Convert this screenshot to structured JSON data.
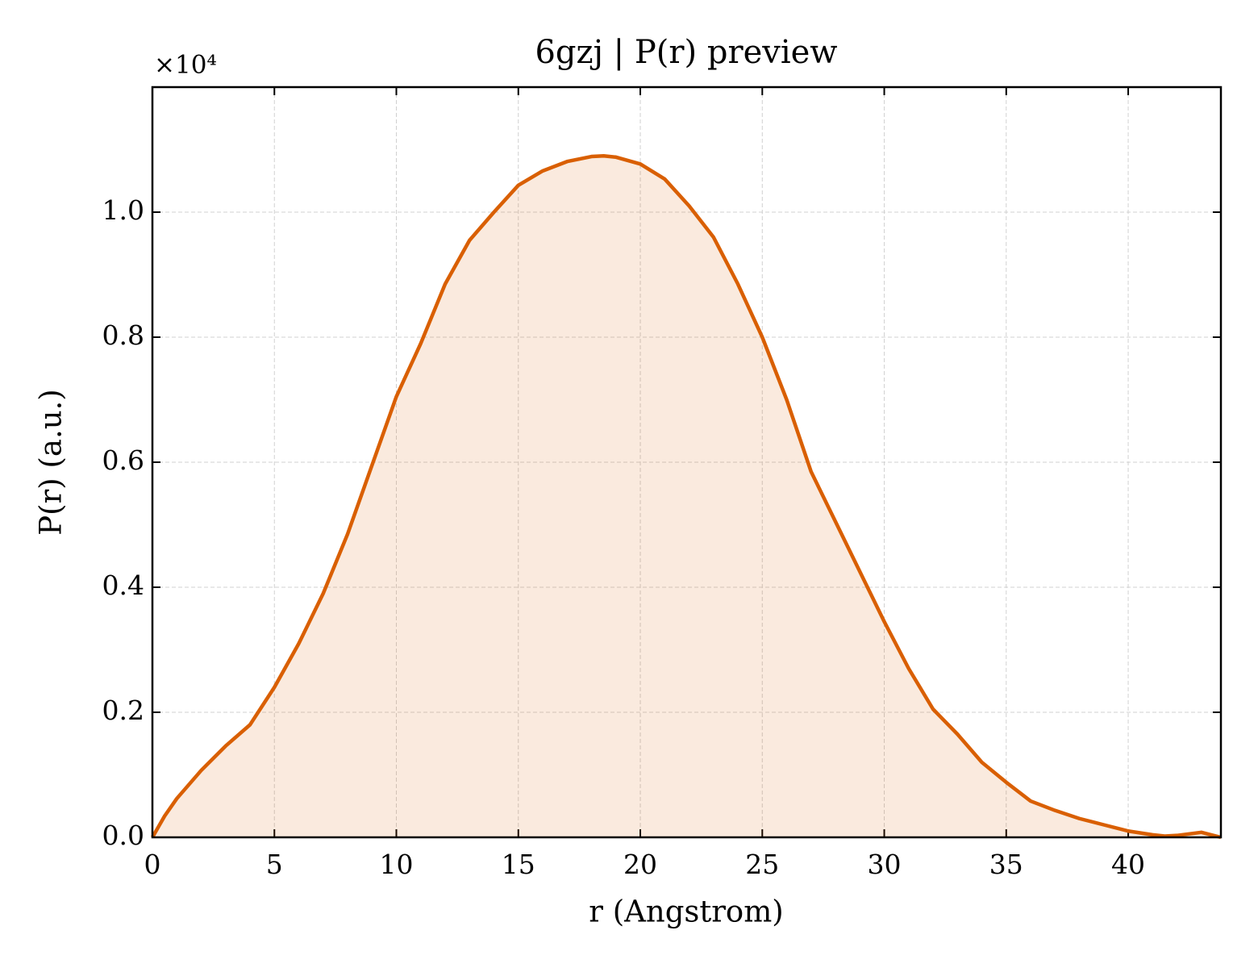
{
  "chart_data": {
    "type": "area_line",
    "title": "6gzj | P(r) preview",
    "xlabel": "r (Angstrom)",
    "ylabel": "P(r) (a.u.)",
    "y_offset_label": "×10⁴",
    "color": "#d95f02",
    "grid": true,
    "xlim": [
      0,
      43.8
    ],
    "xticks": [
      0,
      5,
      10,
      15,
      20,
      25,
      30,
      35,
      40
    ],
    "ylim": [
      0,
      1.2
    ],
    "yticks": [
      {
        "value": 0,
        "label": "0.0"
      },
      0.2,
      0.4,
      0.6,
      0.8,
      {
        "value": 1,
        "label": "1.0"
      }
    ],
    "x": [
      0,
      0.5,
      1,
      2,
      3,
      4,
      5,
      6,
      7,
      8,
      9,
      10,
      11,
      12,
      13,
      14,
      15,
      16,
      17,
      18,
      18.5,
      19,
      20,
      21,
      22,
      23,
      24,
      25,
      26,
      27,
      28,
      29,
      30,
      31,
      32,
      33,
      34,
      35,
      36,
      37,
      38,
      39,
      40,
      41,
      41.5,
      42,
      43,
      43.8
    ],
    "values": [
      0,
      0.034,
      0.062,
      0.107,
      0.146,
      0.18,
      0.24,
      0.31,
      0.39,
      0.485,
      0.595,
      0.705,
      0.79,
      0.885,
      0.955,
      1.0,
      1.043,
      1.066,
      1.081,
      1.089,
      1.09,
      1.088,
      1.077,
      1.053,
      1.01,
      0.96,
      0.885,
      0.8,
      0.7,
      0.585,
      0.505,
      0.425,
      0.345,
      0.27,
      0.205,
      0.165,
      0.12,
      0.088,
      0.058,
      0.043,
      0.03,
      0.02,
      0.01,
      0.004,
      0.002,
      0.003,
      0.008,
      0
    ]
  }
}
